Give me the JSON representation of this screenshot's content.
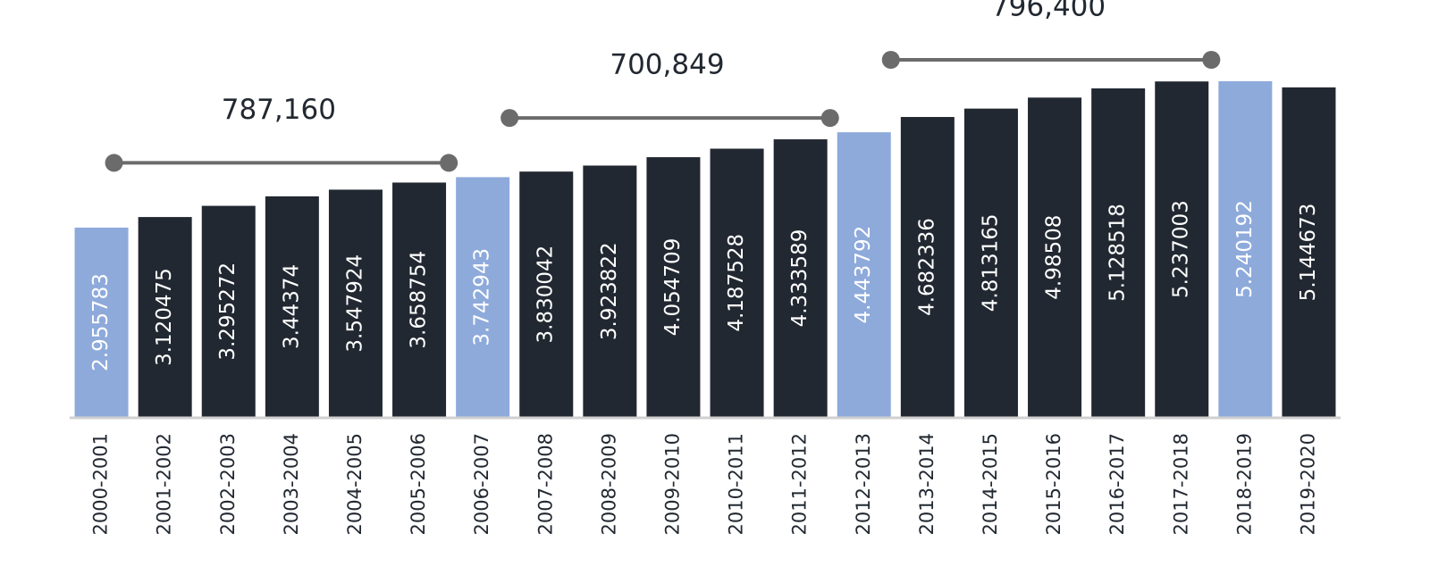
{
  "chart_data": {
    "type": "bar",
    "categories": [
      "2000-2001",
      "2001-2002",
      "2002-2003",
      "2003-2004",
      "2004-2005",
      "2005-2006",
      "2006-2007",
      "2007-2008",
      "2008-2009",
      "2009-2010",
      "2010-2011",
      "2011-2012",
      "2012-2013",
      "2013-2014",
      "2014-2015",
      "2015-2016",
      "2016-2017",
      "2017-2018",
      "2018-2019",
      "2019-2020"
    ],
    "values": [
      2.955783,
      3.120475,
      3.295272,
      3.44374,
      3.547924,
      3.658754,
      3.742943,
      3.830042,
      3.923822,
      4.054709,
      4.187528,
      4.333589,
      4.443792,
      4.682336,
      4.813165,
      4.98508,
      5.128518,
      5.237003,
      5.240192,
      5.144673
    ],
    "colors": [
      "#8eaadb",
      "#222831",
      "#222831",
      "#222831",
      "#222831",
      "#222831",
      "#8eaadb",
      "#222831",
      "#222831",
      "#222831",
      "#222831",
      "#222831",
      "#8eaadb",
      "#222831",
      "#222831",
      "#222831",
      "#222831",
      "#222831",
      "#8eaadb",
      "#222831"
    ],
    "annotations": [
      "787,160",
      "700,849",
      "796,400"
    ]
  }
}
